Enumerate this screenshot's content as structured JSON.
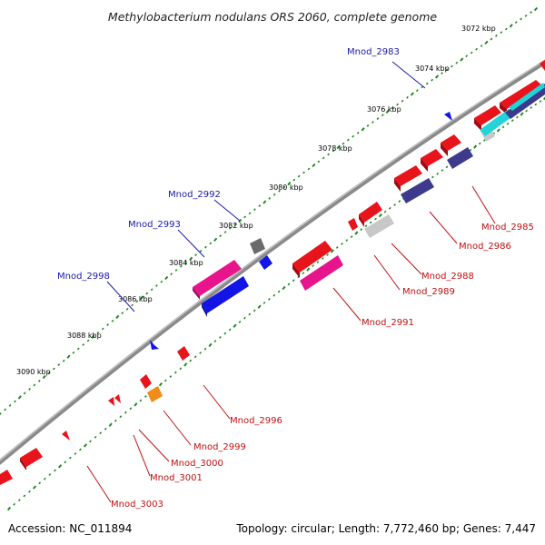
{
  "title": "Methylobacterium nodulans ORS 2060, complete genome",
  "footer": {
    "accession": "Accession: NC_011894",
    "summary": "Topology: circular; Length: 7,772,460 bp; Genes: 7,447"
  },
  "colors": {
    "backbone": "#8a8a8a",
    "tick": "#1f8a1f",
    "red": "#e8141c",
    "pink": "#e8148c",
    "blue": "#1414e6",
    "navy": "#3d3a8c",
    "gray": "#b8b8b8",
    "darkgray": "#6a6a6a",
    "cyan": "#22d3d8",
    "orange": "#f08c1a",
    "label_blue": "#1a1aa8",
    "label_red": "#c01010"
  },
  "scale_labels": [
    "3072 kbp",
    "3074 kbp",
    "3076 kbp",
    "3078 kbp",
    "3080 kbp",
    "3082 kbp",
    "3084 kbp",
    "3086 kbp",
    "3088 kbp",
    "3090 kbp"
  ],
  "gene_labels_outer": [
    "Mnod_2983",
    "Mnod_2992",
    "Mnod_2993",
    "Mnod_2998"
  ],
  "gene_labels_inner": [
    "Mnod_2985",
    "Mnod_2986",
    "Mnod_2988",
    "Mnod_2989",
    "Mnod_2991",
    "Mnod_2996",
    "Mnod_2999",
    "Mnod_3000",
    "Mnod_3001",
    "Mnod_3003"
  ]
}
